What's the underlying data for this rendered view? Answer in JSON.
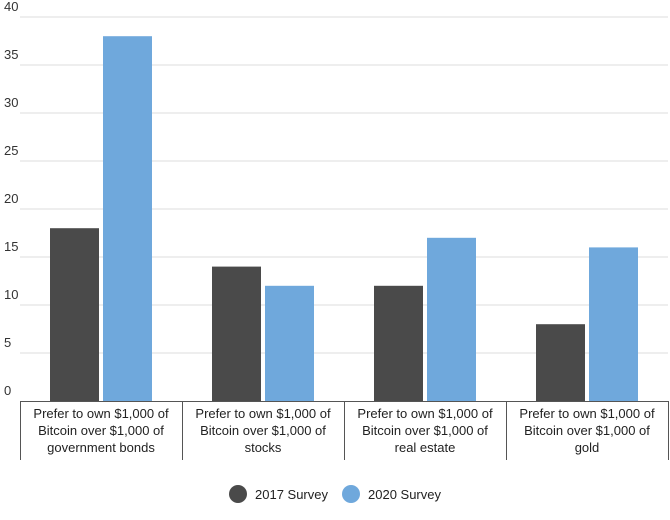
{
  "chart_data": {
    "type": "bar",
    "categories": [
      [
        "Prefer to own $1,000 of",
        "Bitcoin over $1,000 of",
        "government bonds"
      ],
      [
        "Prefer to own $1,000 of",
        "Bitcoin over $1,000 of",
        "stocks"
      ],
      [
        "Prefer to own $1,000 of",
        "Bitcoin over $1,000 of",
        "real estate"
      ],
      [
        "Prefer to own $1,000 of",
        "Bitcoin over $1,000 of",
        "gold"
      ]
    ],
    "series": [
      {
        "name": "2017 Survey",
        "color": "#4a4a4a",
        "values": [
          18,
          14,
          12,
          8
        ]
      },
      {
        "name": "2020 Survey",
        "color": "#6fa8dc",
        "values": [
          38,
          12,
          17,
          16
        ]
      }
    ],
    "y_ticks": [
      0,
      5,
      10,
      15,
      20,
      25,
      30,
      35,
      40
    ],
    "ylim": [
      0,
      40
    ],
    "grid": true,
    "legend_position": "bottom-center",
    "title": "",
    "xlabel": "",
    "ylabel": ""
  }
}
